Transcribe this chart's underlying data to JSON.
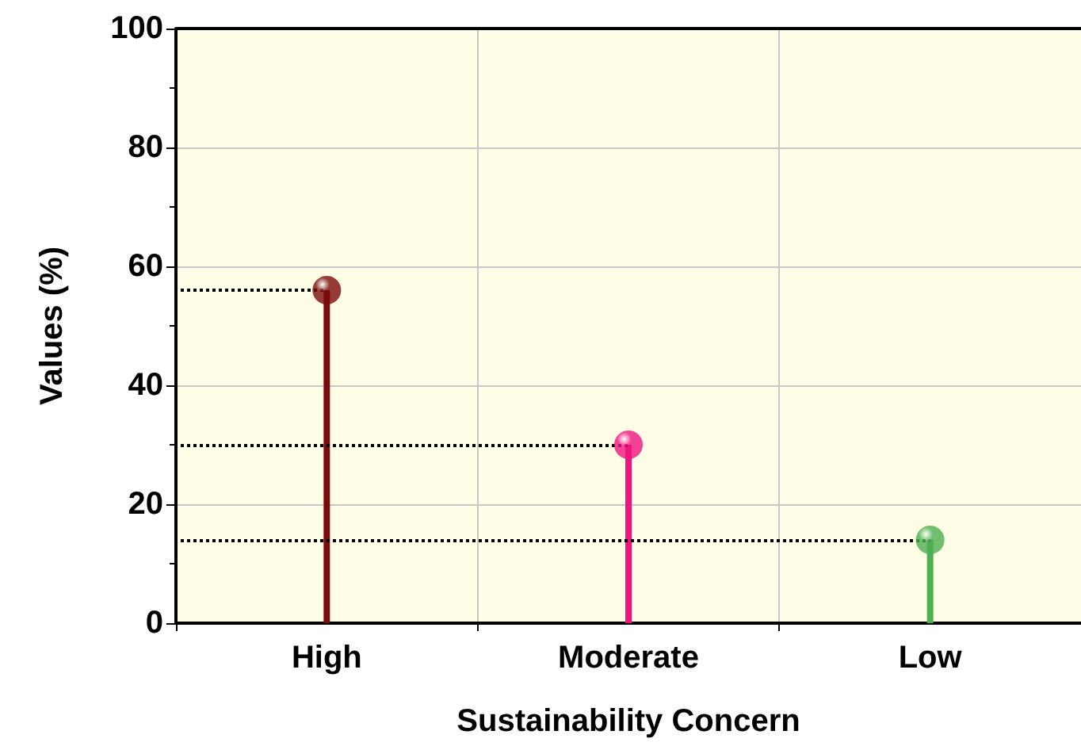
{
  "chart_data": {
    "type": "lollipop",
    "xlabel": "Sustainability Concern",
    "ylabel": "Values (%)",
    "categories": [
      "High",
      "Moderate",
      "Low"
    ],
    "values": [
      56,
      30,
      14
    ],
    "colors": [
      "#7b0a0a",
      "#f0147f",
      "#4caf50"
    ],
    "ref_lines": [
      {
        "axis": "y",
        "value": 56,
        "color": "#000000",
        "line_style": "dotted"
      },
      {
        "axis": "y",
        "value": 30,
        "color": "#000000",
        "line_style": "dotted"
      },
      {
        "axis": "y",
        "value": 14,
        "color": "#000000",
        "line_style": "dotted"
      }
    ],
    "ylim": [
      0,
      100
    ],
    "yticks": [
      0,
      20,
      40,
      60,
      80,
      100
    ],
    "grid": true,
    "marker": "circle"
  }
}
